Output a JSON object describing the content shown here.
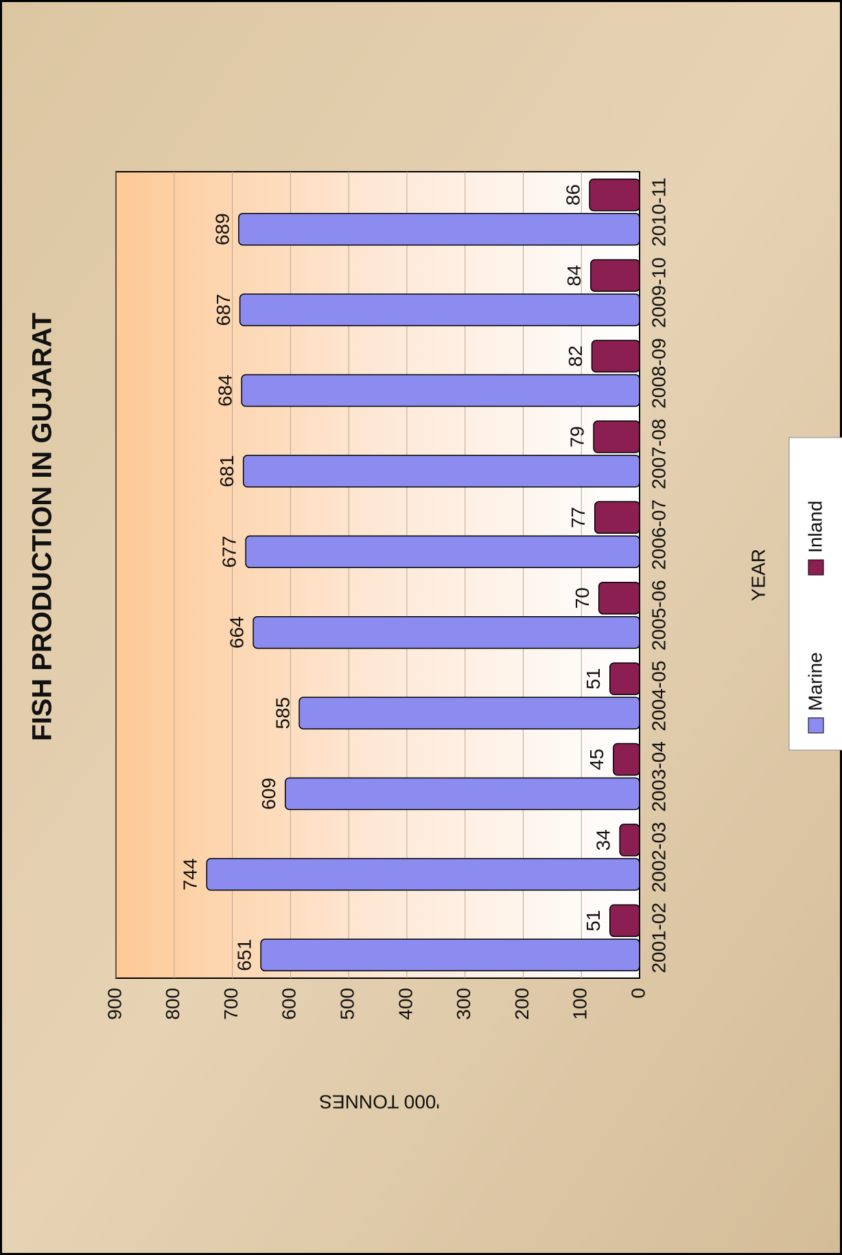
{
  "chart_data": {
    "type": "bar",
    "title": "FISH PRODUCTION IN GUJARAT",
    "x_label": "YEAR",
    "y_label": "'000 TONNES",
    "categories": [
      "2001-02",
      "2002-03",
      "2003-04",
      "2004-05",
      "2005-06",
      "2006-07",
      "2007-08",
      "2008-09",
      "2009-10",
      "2010-11"
    ],
    "series": [
      {
        "name": "Marine",
        "color": "#8c8cf0",
        "values": [
          651,
          744,
          609,
          585,
          664,
          677,
          681,
          684,
          687,
          689
        ]
      },
      {
        "name": "Inland",
        "color": "#8b1f52",
        "values": [
          51,
          34,
          45,
          51,
          70,
          77,
          79,
          82,
          84,
          86
        ]
      }
    ],
    "ylim": [
      0,
      900
    ],
    "yticks": [
      0,
      100,
      200,
      300,
      400,
      500,
      600,
      700,
      800,
      900
    ],
    "grid": true
  }
}
